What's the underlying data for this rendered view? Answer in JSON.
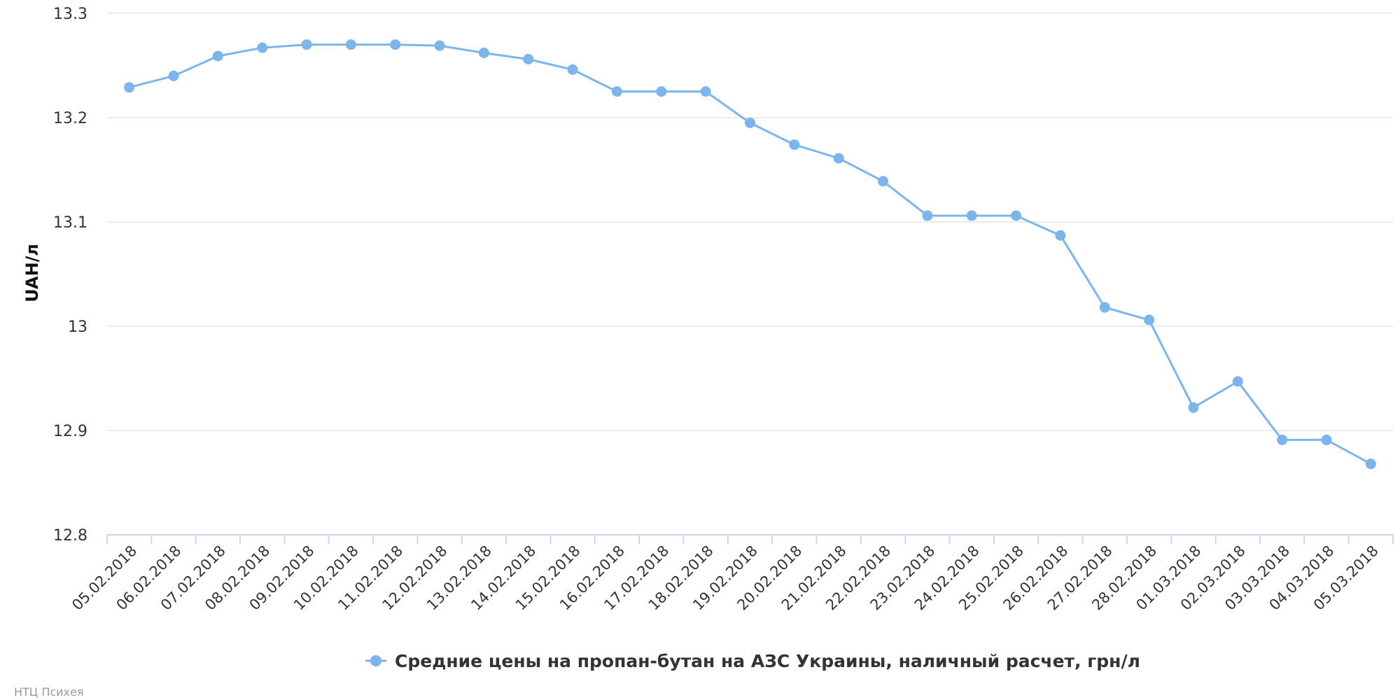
{
  "chart_data": {
    "type": "line",
    "ylabel": "UAH/л",
    "ylim": [
      12.8,
      13.3
    ],
    "yticks": [
      "12.8",
      "12.9",
      "13",
      "13.1",
      "13.2",
      "13.3"
    ],
    "grid": true,
    "legend_position": "bottom-center",
    "credit": "НТЦ Психея",
    "colors": {
      "series": "#7cb5ec",
      "grid": "#e6e6e6",
      "axis": "#ccd6eb"
    },
    "categories": [
      "05.02.2018",
      "06.02.2018",
      "07.02.2018",
      "08.02.2018",
      "09.02.2018",
      "10.02.2018",
      "11.02.2018",
      "12.02.2018",
      "13.02.2018",
      "14.02.2018",
      "15.02.2018",
      "16.02.2018",
      "17.02.2018",
      "18.02.2018",
      "19.02.2018",
      "20.02.2018",
      "21.02.2018",
      "22.02.2018",
      "23.02.2018",
      "24.02.2018",
      "25.02.2018",
      "26.02.2018",
      "27.02.2018",
      "28.02.2018",
      "01.03.2018",
      "02.03.2018",
      "03.03.2018",
      "04.03.2018",
      "05.03.2018"
    ],
    "series": [
      {
        "name": "Средние цены на пропан-бутан на АЗС Украины, наличный расчет, грн/л",
        "values": [
          13.229,
          13.24,
          13.259,
          13.267,
          13.27,
          13.27,
          13.27,
          13.269,
          13.262,
          13.256,
          13.246,
          13.225,
          13.225,
          13.225,
          13.195,
          13.174,
          13.161,
          13.139,
          13.106,
          13.106,
          13.106,
          13.087,
          13.018,
          13.006,
          12.922,
          12.947,
          12.891,
          12.891,
          12.868
        ]
      }
    ]
  }
}
